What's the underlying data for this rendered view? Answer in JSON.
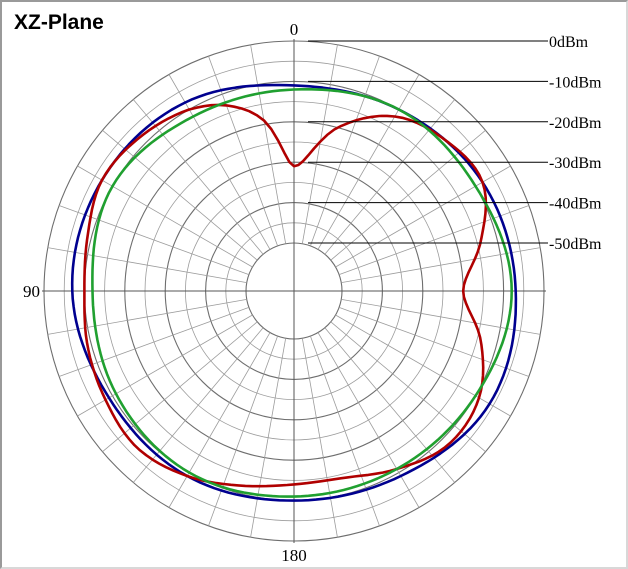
{
  "chart_data": {
    "type": "polar",
    "title": "XZ-Plane",
    "radial_unit": "dBm",
    "radial_range": [
      -50,
      0
    ],
    "ring_labels": [
      "0dBm",
      "-10dBm",
      "-20dBm",
      "-30dBm",
      "-40dBm",
      "-50dBm"
    ],
    "ring_values": [
      0,
      -10,
      -20,
      -30,
      -40,
      -50
    ],
    "angle_labels": [
      {
        "angle": 0,
        "text": "0"
      },
      {
        "angle": 90,
        "text": "90"
      },
      {
        "angle": 180,
        "text": "180"
      }
    ],
    "angle_step_deg": 10,
    "angle_direction": "counterclockwise",
    "series": [
      {
        "color": "#00008f",
        "angles": [
          0,
          30,
          60,
          90,
          120,
          150,
          180,
          210,
          240,
          270,
          300,
          330
        ],
        "values": [
          -11,
          -8,
          -7,
          -7,
          -9,
          -9,
          -10,
          -9,
          -6,
          -7,
          -8,
          -10
        ]
      },
      {
        "color": "#b00000",
        "angles": [
          0,
          10,
          20,
          30,
          45,
          60,
          75,
          90,
          105,
          120,
          135,
          150,
          165,
          180,
          195,
          210,
          225,
          240,
          255,
          270,
          285,
          300,
          315,
          330,
          345
        ],
        "values": [
          -31,
          -19,
          -13,
          -10,
          -8,
          -7,
          -9,
          -10,
          -9,
          -8,
          -7,
          -9,
          -12,
          -14,
          -14,
          -11,
          -8,
          -9,
          -14,
          -20,
          -14,
          -8,
          -9,
          -12,
          -20
        ]
      },
      {
        "color": "#20a030",
        "angles": [
          0,
          30,
          60,
          90,
          120,
          150,
          180,
          210,
          240,
          270,
          300,
          330
        ],
        "values": [
          -12,
          -12,
          -10,
          -12,
          -11,
          -10,
          -11,
          -11,
          -10,
          -8,
          -10,
          -10
        ]
      }
    ]
  }
}
